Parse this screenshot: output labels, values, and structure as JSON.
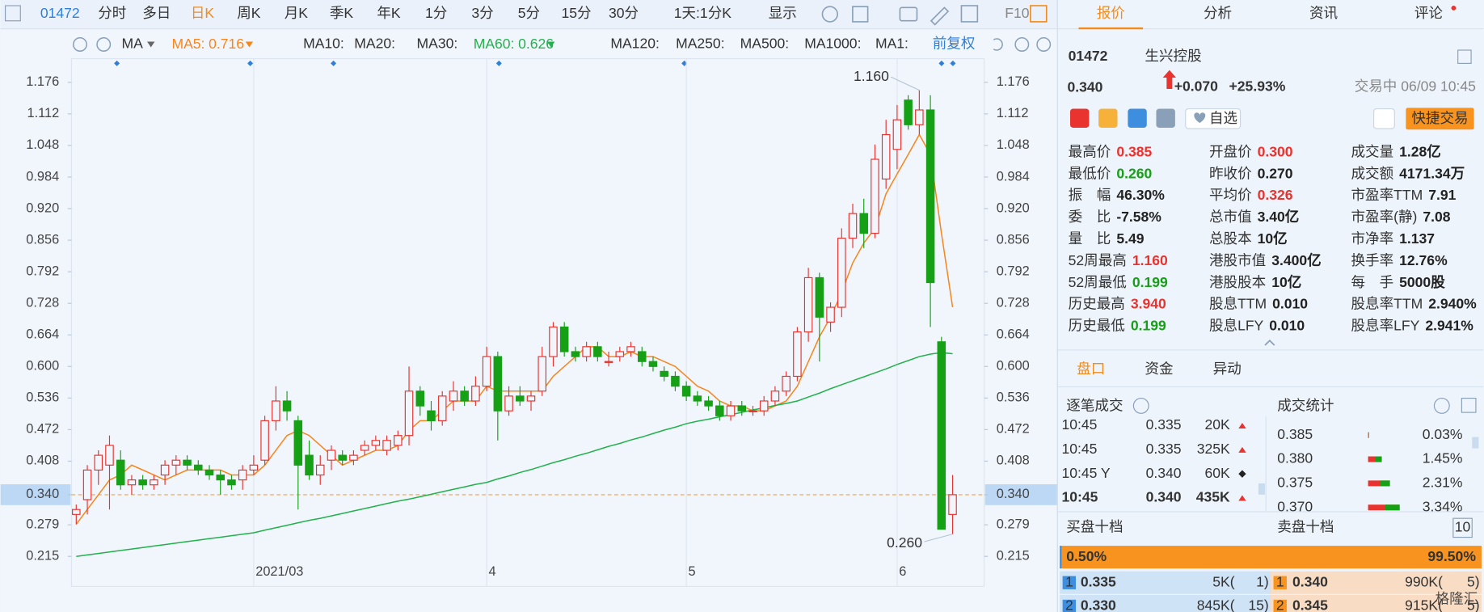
{
  "toolbar": {
    "code": "01472",
    "tabs": [
      "分时",
      "多日",
      "日K",
      "周K",
      "月K",
      "季K",
      "年K",
      "1分",
      "3分",
      "5分",
      "15分",
      "30分",
      "1天:1分K",
      "显示"
    ],
    "active": 2,
    "f10": "F10"
  },
  "chart_data": {
    "type": "candlestick",
    "categories": [
      null,
      null,
      null,
      null,
      null,
      null,
      null,
      null,
      null,
      null,
      null,
      null,
      null,
      null,
      null,
      null,
      "2021/03",
      null,
      null,
      null,
      null,
      null,
      null,
      null,
      null,
      null,
      null,
      null,
      null,
      null,
      null,
      null,
      null,
      null,
      null,
      null,
      null,
      "4",
      null,
      null,
      null,
      null,
      null,
      null,
      null,
      null,
      null,
      null,
      null,
      null,
      null,
      null,
      null,
      null,
      null,
      "5",
      null,
      null,
      null,
      null,
      null,
      null,
      null,
      null,
      null,
      null,
      null,
      null,
      null,
      null,
      null,
      null,
      null,
      null,
      "6",
      null,
      null,
      null,
      null,
      null
    ],
    "open": [
      0.3,
      0.33,
      0.39,
      0.4,
      0.41,
      0.36,
      0.37,
      0.36,
      0.38,
      0.4,
      0.41,
      0.4,
      0.39,
      0.38,
      0.37,
      0.37,
      0.39,
      0.41,
      0.49,
      0.53,
      0.49,
      0.42,
      0.38,
      0.41,
      0.42,
      0.41,
      0.43,
      0.44,
      0.43,
      0.44,
      0.46,
      0.55,
      0.51,
      0.49,
      0.53,
      0.55,
      0.53,
      0.56,
      0.62,
      0.51,
      0.54,
      0.53,
      0.55,
      0.62,
      0.68,
      0.63,
      0.62,
      0.64,
      0.61,
      0.62,
      0.63,
      0.63,
      0.61,
      0.59,
      0.58,
      0.56,
      0.54,
      0.53,
      0.52,
      0.5,
      0.52,
      0.51,
      0.51,
      0.53,
      0.55,
      0.58,
      0.67,
      0.78,
      0.69,
      0.72,
      0.86,
      0.91,
      0.87,
      0.98,
      1.04,
      1.14,
      1.09,
      1.12,
      0.65,
      0.3
    ],
    "high": [
      0.32,
      0.4,
      0.43,
      0.46,
      0.43,
      0.38,
      0.38,
      0.38,
      0.41,
      0.42,
      0.42,
      0.41,
      0.4,
      0.39,
      0.38,
      0.4,
      0.42,
      0.5,
      0.56,
      0.55,
      0.5,
      0.45,
      0.42,
      0.44,
      0.43,
      0.43,
      0.45,
      0.46,
      0.46,
      0.47,
      0.6,
      0.56,
      0.53,
      0.55,
      0.57,
      0.56,
      0.58,
      0.64,
      0.63,
      0.56,
      0.56,
      0.55,
      0.64,
      0.69,
      0.69,
      0.64,
      0.65,
      0.65,
      0.63,
      0.64,
      0.65,
      0.64,
      0.62,
      0.6,
      0.59,
      0.57,
      0.55,
      0.54,
      0.53,
      0.53,
      0.53,
      0.52,
      0.54,
      0.56,
      0.59,
      0.68,
      0.8,
      0.79,
      0.73,
      0.88,
      0.93,
      0.94,
      1.05,
      1.1,
      1.13,
      1.15,
      1.16,
      1.15,
      0.66,
      0.38
    ],
    "low": [
      0.28,
      0.3,
      0.36,
      0.31,
      0.35,
      0.34,
      0.35,
      0.35,
      0.36,
      0.38,
      0.39,
      0.38,
      0.37,
      0.34,
      0.35,
      0.35,
      0.38,
      0.4,
      0.47,
      0.49,
      0.31,
      0.37,
      0.36,
      0.39,
      0.4,
      0.4,
      0.42,
      0.43,
      0.42,
      0.43,
      0.44,
      0.5,
      0.47,
      0.48,
      0.51,
      0.52,
      0.52,
      0.55,
      0.45,
      0.5,
      0.52,
      0.51,
      0.54,
      0.6,
      0.62,
      0.61,
      0.61,
      0.61,
      0.6,
      0.61,
      0.62,
      0.6,
      0.59,
      0.57,
      0.55,
      0.53,
      0.52,
      0.51,
      0.49,
      0.49,
      0.5,
      0.5,
      0.5,
      0.52,
      0.54,
      0.57,
      0.65,
      0.61,
      0.67,
      0.7,
      0.84,
      0.84,
      0.86,
      0.96,
      1.0,
      1.08,
      1.07,
      0.68,
      0.27,
      0.26
    ],
    "close": [
      0.31,
      0.39,
      0.42,
      0.44,
      0.36,
      0.37,
      0.36,
      0.37,
      0.4,
      0.41,
      0.4,
      0.39,
      0.38,
      0.37,
      0.36,
      0.39,
      0.4,
      0.49,
      0.53,
      0.51,
      0.4,
      0.38,
      0.4,
      0.43,
      0.41,
      0.42,
      0.44,
      0.45,
      0.45,
      0.46,
      0.55,
      0.52,
      0.49,
      0.54,
      0.55,
      0.53,
      0.56,
      0.62,
      0.51,
      0.54,
      0.53,
      0.54,
      0.62,
      0.68,
      0.63,
      0.62,
      0.64,
      0.62,
      0.61,
      0.63,
      0.64,
      0.61,
      0.6,
      0.58,
      0.56,
      0.54,
      0.53,
      0.52,
      0.5,
      0.52,
      0.51,
      0.51,
      0.53,
      0.55,
      0.58,
      0.67,
      0.78,
      0.7,
      0.72,
      0.86,
      0.91,
      0.87,
      1.02,
      1.07,
      1.1,
      1.09,
      1.12,
      0.77,
      0.27,
      0.34
    ],
    "up_color": "#e8332f",
    "down_color": "#16a016",
    "series": [
      {
        "name": "MA5:",
        "last_label": "0.716",
        "color": "#f5871f",
        "values": [
          0.28,
          0.31,
          0.34,
          0.37,
          0.38,
          0.4,
          0.39,
          0.38,
          0.37,
          0.38,
          0.39,
          0.39,
          0.39,
          0.39,
          0.38,
          0.38,
          0.38,
          0.4,
          0.43,
          0.46,
          0.47,
          0.46,
          0.44,
          0.42,
          0.4,
          0.41,
          0.42,
          0.43,
          0.43,
          0.44,
          0.47,
          0.49,
          0.49,
          0.51,
          0.53,
          0.53,
          0.53,
          0.56,
          0.55,
          0.55,
          0.55,
          0.55,
          0.55,
          0.58,
          0.6,
          0.62,
          0.64,
          0.64,
          0.62,
          0.62,
          0.63,
          0.62,
          0.62,
          0.61,
          0.6,
          0.58,
          0.56,
          0.55,
          0.53,
          0.52,
          0.52,
          0.51,
          0.51,
          0.52,
          0.53,
          0.56,
          0.61,
          0.66,
          0.7,
          0.75,
          0.81,
          0.85,
          0.88,
          0.95,
          0.99,
          1.03,
          1.07,
          1.03,
          0.87,
          0.72
        ]
      },
      {
        "name": "MA60:",
        "last_label": "0.626",
        "color": "#22b14c",
        "values": [
          0.215,
          0.218,
          0.221,
          0.224,
          0.227,
          0.23,
          0.233,
          0.236,
          0.239,
          0.242,
          0.245,
          0.248,
          0.251,
          0.254,
          0.257,
          0.26,
          0.263,
          0.268,
          0.273,
          0.278,
          0.283,
          0.288,
          0.292,
          0.297,
          0.302,
          0.307,
          0.312,
          0.317,
          0.322,
          0.327,
          0.331,
          0.336,
          0.341,
          0.346,
          0.351,
          0.356,
          0.361,
          0.365,
          0.372,
          0.378,
          0.385,
          0.391,
          0.398,
          0.405,
          0.411,
          0.418,
          0.424,
          0.431,
          0.438,
          0.444,
          0.451,
          0.457,
          0.464,
          0.471,
          0.477,
          0.484,
          0.489,
          0.493,
          0.498,
          0.502,
          0.507,
          0.512,
          0.516,
          0.521,
          0.525,
          0.53,
          0.538,
          0.546,
          0.555,
          0.563,
          0.571,
          0.579,
          0.587,
          0.595,
          0.604,
          0.612,
          0.62,
          0.625,
          0.628,
          0.626
        ]
      }
    ],
    "ma_selector": "MA",
    "inactive_ma": [
      {
        "name": "MA10:",
        "color": "#a9cdf0"
      },
      {
        "name": "MA20:",
        "color": "#f3b7c6"
      },
      {
        "name": "MA30:",
        "color": "#b9c7dd"
      },
      {
        "name": "MA120:",
        "color": "#f6a8b8"
      },
      {
        "name": "MA250:",
        "color": "#8fdcf0"
      },
      {
        "name": "MA500:",
        "color": "#f5de8a"
      },
      {
        "name": "MA1000:",
        "color": "#c8b6ee"
      },
      {
        "name": "MA1:",
        "color": "#b9c4d2"
      }
    ],
    "adjust": "前复权",
    "ylim": [
      0.154,
      1.224
    ],
    "yticks": [
      1.176,
      1.112,
      1.048,
      0.984,
      {
        "value": 0.92,
        "label": "0.920"
      },
      0.856,
      0.792,
      0.728,
      0.664,
      {
        "value": 0.6,
        "label": "0.600"
      },
      0.536,
      0.472,
      0.408,
      {
        "value": 0.34,
        "label": "0.340"
      },
      0.279,
      0.215
    ],
    "price_line": 0.34,
    "high_label": {
      "value": 1.16,
      "label": "1.160"
    },
    "low_label": {
      "value": 0.26,
      "label": "0.260"
    },
    "grid": "x"
  },
  "panel": {
    "tabs": [
      "报价",
      "分析",
      "资讯",
      "评论"
    ],
    "code": "01472",
    "name": "生兴控股",
    "price": "0.340",
    "change": "+0.070",
    "change_pct": "+25.93%",
    "status": "交易中 06/09 10:45",
    "watch": "自选",
    "quick_trade": "快捷交易",
    "stats": [
      [
        {
          "label": "最高价",
          "value": "0.385",
          "tone": "up"
        },
        {
          "label": "开盘价",
          "value": "0.300",
          "tone": "up"
        },
        {
          "label": "成交量",
          "value": "1.28亿",
          "tone": "flat"
        }
      ],
      [
        {
          "label": "最低价",
          "value": "0.260",
          "tone": "down"
        },
        {
          "label": "昨收价",
          "value": "0.270",
          "tone": "flat"
        },
        {
          "label": "成交额",
          "value": "4171.34万",
          "tone": "flat"
        }
      ],
      [
        {
          "label": "振　幅",
          "value": "46.30%",
          "tone": "flat"
        },
        {
          "label": "平均价",
          "value": "0.326",
          "tone": "up"
        },
        {
          "label": "市盈率TTM",
          "value": "7.91",
          "tone": "flat"
        }
      ],
      [
        {
          "label": "委　比",
          "value": "-7.58%",
          "tone": "flat"
        },
        {
          "label": "总市值",
          "value": "3.40亿",
          "tone": "flat"
        },
        {
          "label": "市盈率(静)",
          "value": "7.08",
          "tone": "flat"
        }
      ],
      [
        {
          "label": "量　比",
          "value": "5.49",
          "tone": "flat"
        },
        {
          "label": "总股本",
          "value": "10亿",
          "tone": "flat"
        },
        {
          "label": "市净率",
          "value": "1.137",
          "tone": "flat"
        }
      ],
      [
        {
          "label": "52周最高",
          "value": "1.160",
          "tone": "up"
        },
        {
          "label": "港股市值",
          "value": "3.400亿",
          "tone": "flat"
        },
        {
          "label": "换手率",
          "value": "12.76%",
          "tone": "flat"
        }
      ],
      [
        {
          "label": "52周最低",
          "value": "0.199",
          "tone": "down"
        },
        {
          "label": "港股股本",
          "value": "10亿",
          "tone": "flat"
        },
        {
          "label": "每　手",
          "value": "5000股",
          "tone": "flat"
        }
      ],
      [
        {
          "label": "历史最高",
          "value": "3.940",
          "tone": "up"
        },
        {
          "label": "股息TTM",
          "value": "0.010",
          "tone": "flat"
        },
        {
          "label": "股息率TTM",
          "value": "2.940%",
          "tone": "flat"
        }
      ],
      [
        {
          "label": "历史最低",
          "value": "0.199",
          "tone": "down"
        },
        {
          "label": "股息LFY",
          "value": "0.010",
          "tone": "flat"
        },
        {
          "label": "股息率LFY",
          "value": "2.941%",
          "tone": "flat"
        }
      ]
    ],
    "sub_tabs": [
      "盘口",
      "资金",
      "异动"
    ],
    "ticks_title": "逐笔成交",
    "ticks": [
      {
        "time": "10:45",
        "price": "0.335",
        "volume": "20K",
        "dir": "up"
      },
      {
        "time": "10:45",
        "price": "0.335",
        "volume": "325K",
        "dir": "up"
      },
      {
        "time": "10:45 Y",
        "price": "0.340",
        "volume": "60K",
        "dir": "neutral"
      },
      {
        "time": "10:45",
        "price": "0.340",
        "volume": "435K",
        "dir": "up"
      }
    ],
    "stat_title": "成交统计",
    "stat_rows": [
      {
        "price": "0.385",
        "pct": {
          "value": 0.03,
          "label": "0.03%"
        }
      },
      {
        "price": "0.380",
        "pct": {
          "value": 1.45,
          "label": "1.45%"
        }
      },
      {
        "price": "0.375",
        "pct": {
          "value": 2.31,
          "label": "2.31%"
        }
      },
      {
        "price": "0.370",
        "pct": {
          "value": 3.34,
          "label": "3.34%"
        }
      }
    ],
    "bid_title": "买盘十档",
    "ask_title": "卖盘十档",
    "depth_icon": "10",
    "bid_ratio": {
      "value": 0.5,
      "label": "0.50%"
    },
    "ask_ratio": {
      "value": 99.5,
      "label": "99.50%"
    },
    "levels": [
      {
        "bid_no": "1",
        "bid": "0.335",
        "bid_vol": "5K(",
        "bid_cnt": "1)",
        "ask_no": "1",
        "ask": "0.340",
        "ask_vol": "990K(",
        "ask_cnt": "5)"
      },
      {
        "bid_no": "2",
        "bid": "0.330",
        "bid_vol": "845K(",
        "bid_cnt": "15)",
        "ask_no": "2",
        "ask": "0.345",
        "ask_vol": "915K(",
        "ask_cnt": "5)"
      }
    ],
    "watermark": "格隆汇"
  }
}
